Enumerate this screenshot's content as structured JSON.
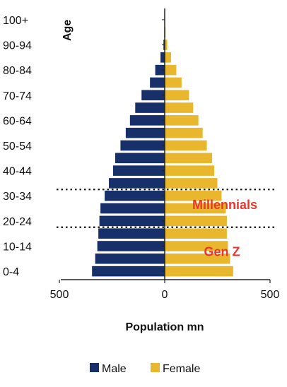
{
  "chart_data": {
    "type": "bar",
    "orientation": "horizontal-population-pyramid",
    "categories": [
      "0-4",
      "5-9",
      "10-14",
      "15-19",
      "20-24",
      "25-29",
      "30-34",
      "35-39",
      "40-44",
      "45-49",
      "50-54",
      "55-59",
      "60-64",
      "65-69",
      "70-74",
      "75-79",
      "80-84",
      "85-89",
      "90-94",
      "95-99",
      "100+"
    ],
    "category_tick_labels": [
      "0-4",
      "10-14",
      "20-24",
      "30-34",
      "40-44",
      "50-54",
      "60-64",
      "70-74",
      "80-84",
      "90-94",
      "100+"
    ],
    "series": [
      {
        "name": "Male",
        "color": "#17306a",
        "values": [
          345,
          330,
          320,
          315,
          310,
          305,
          285,
          265,
          245,
          235,
          210,
          185,
          165,
          140,
          110,
          70,
          45,
          20,
          6,
          2,
          0.5
        ]
      },
      {
        "name": "Female",
        "color": "#e8b72d",
        "values": [
          325,
          310,
          300,
          295,
          295,
          290,
          270,
          250,
          235,
          225,
          200,
          180,
          160,
          135,
          115,
          80,
          55,
          30,
          12,
          4,
          1
        ]
      }
    ],
    "xlabel": "Population mn",
    "ylabel": "Age",
    "xlim": [
      -500,
      500
    ],
    "x_tick_labels": [
      "500",
      "0",
      "500"
    ],
    "x_tick_values": [
      -500,
      0,
      500
    ],
    "annotations": [
      {
        "text": "Millennials",
        "color": "#e8382d"
      },
      {
        "text": "Gen Z",
        "color": "#e8382d"
      }
    ],
    "reference_lines": [
      {
        "style": "dotted",
        "between": [
          "30-34",
          "35-39"
        ]
      },
      {
        "style": "dotted",
        "between": [
          "15-19",
          "20-24"
        ]
      }
    ],
    "legend": {
      "position": "bottom",
      "items": [
        "Male",
        "Female"
      ]
    },
    "grid": false
  }
}
